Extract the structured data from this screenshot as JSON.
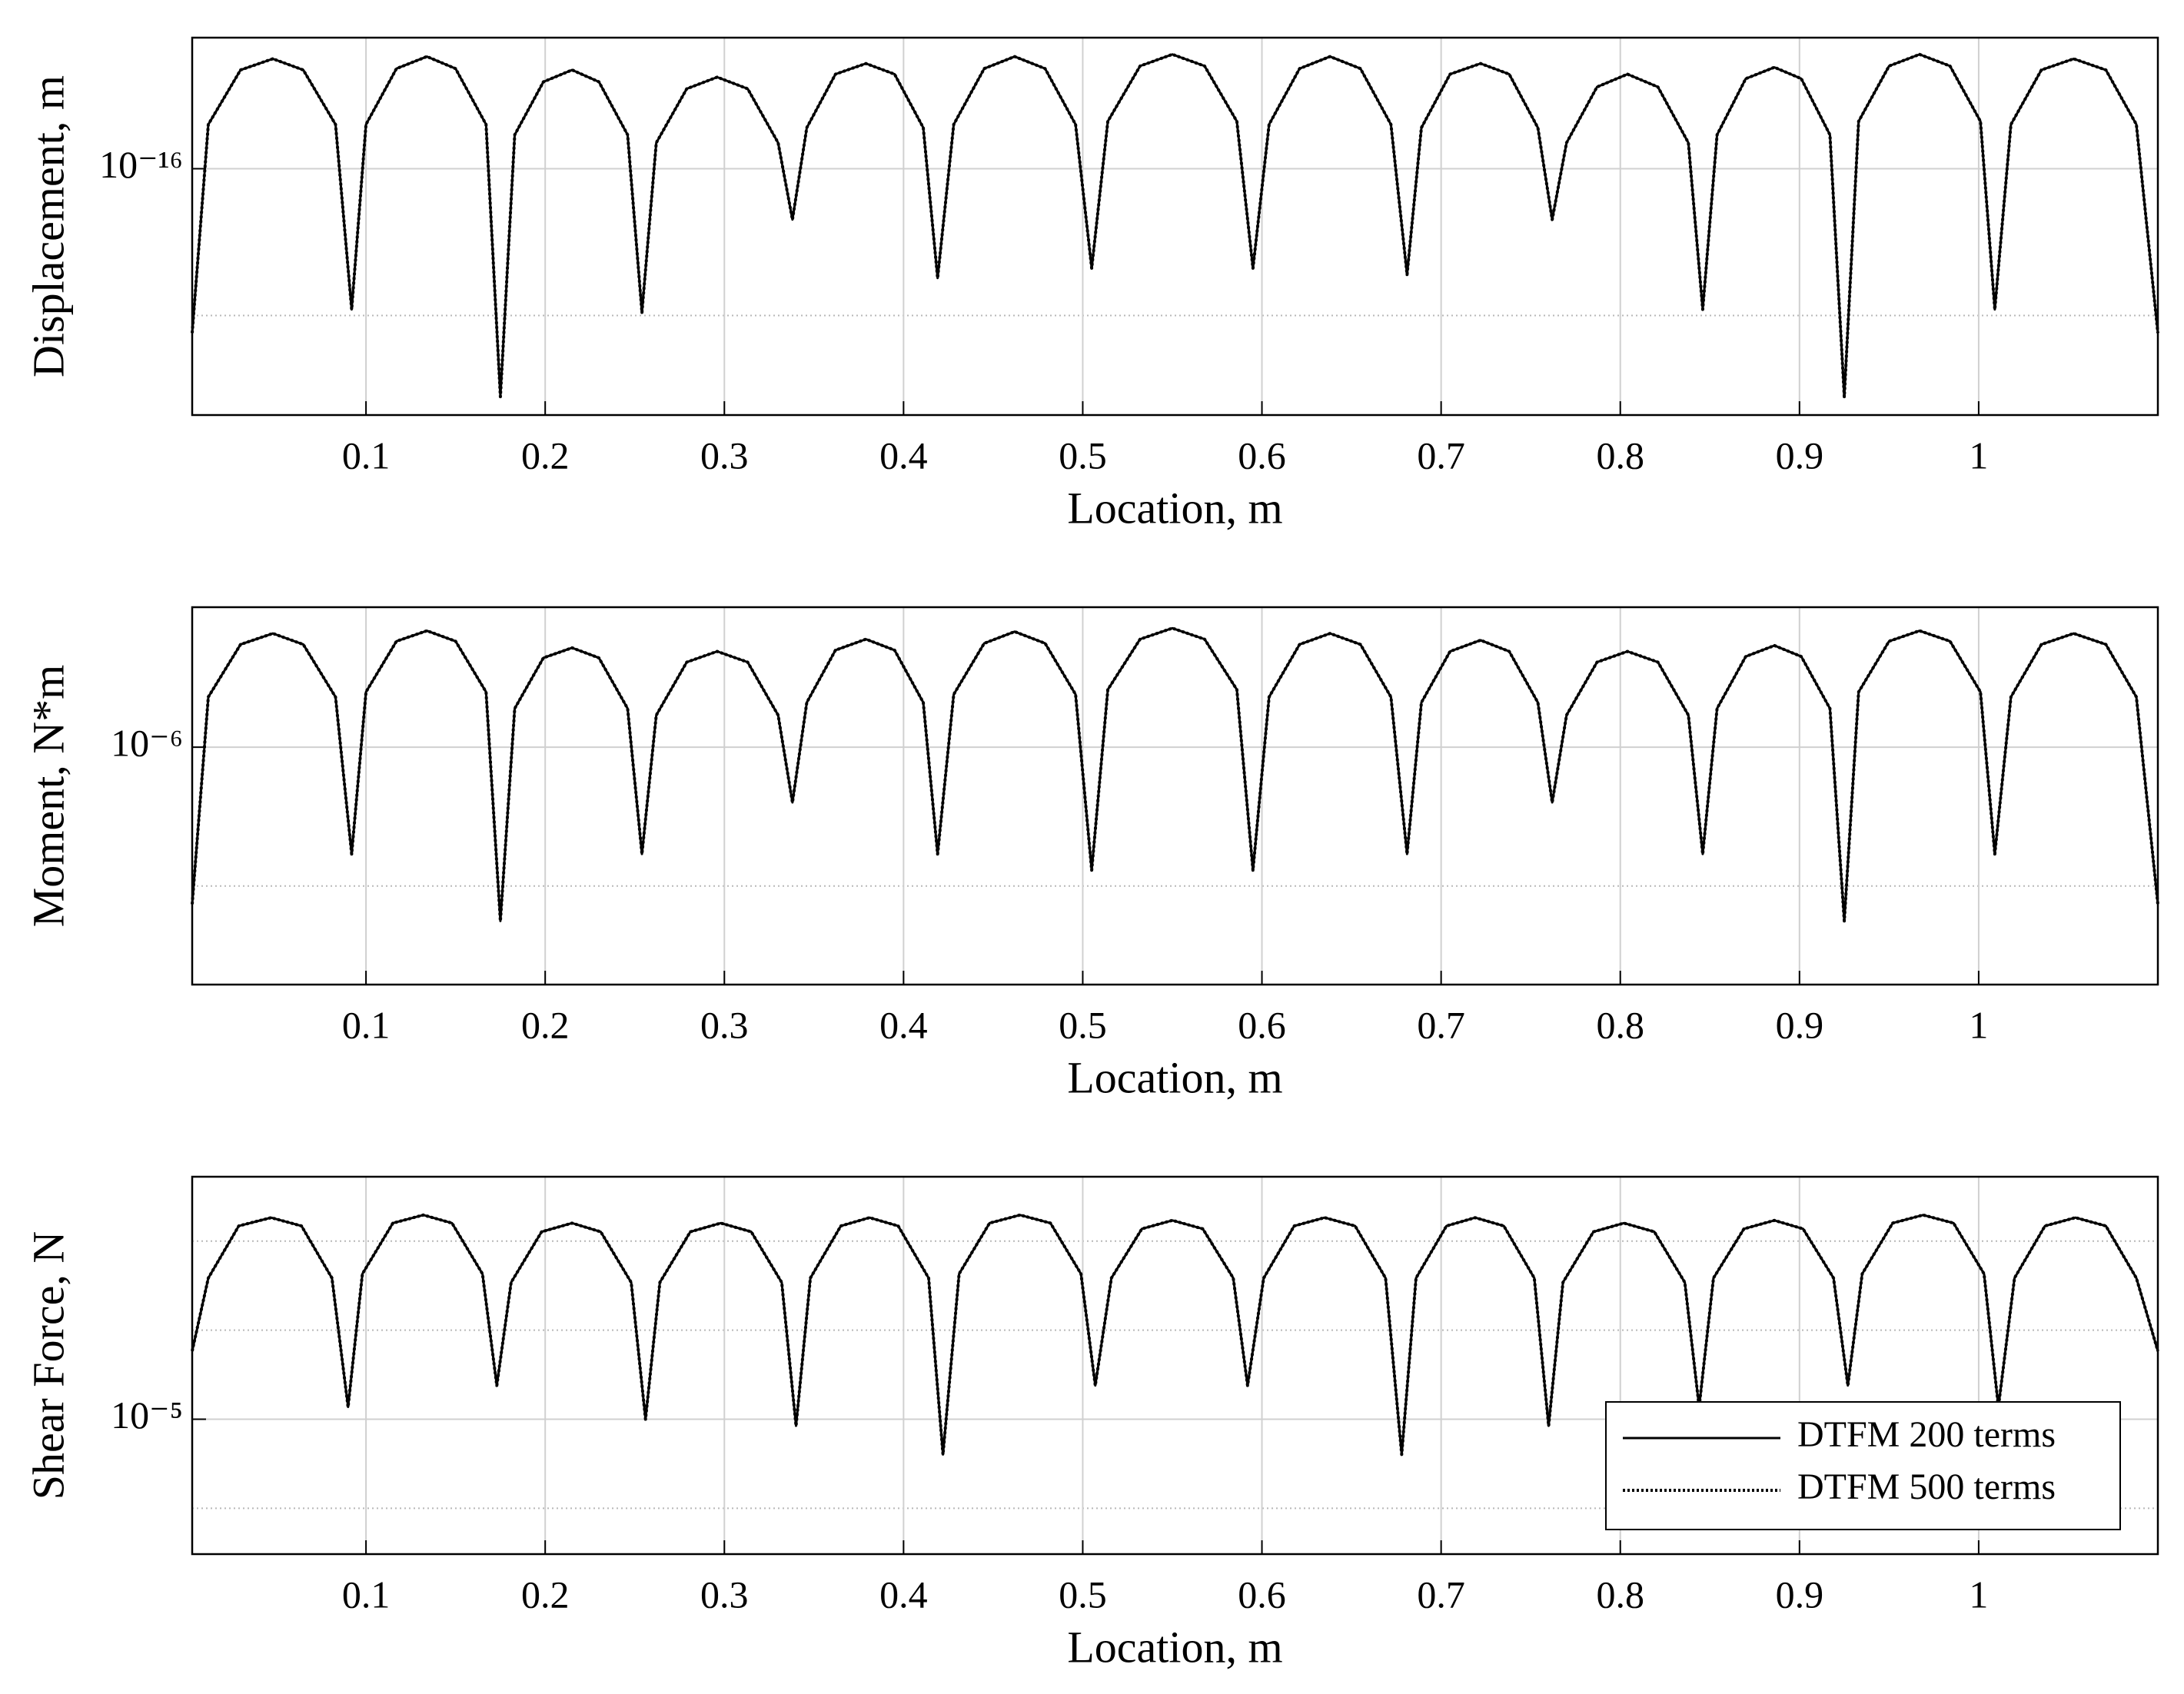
{
  "chart_data": [
    {
      "type": "line",
      "ylabel": "Displacement, m",
      "xlabel": "Location, m",
      "yscale": "log",
      "grid": true,
      "xlim": [
        0.003,
        1.1
      ],
      "xticks": [
        0.1,
        0.2,
        0.3,
        0.4,
        0.5,
        0.6,
        0.7,
        0.8,
        0.9,
        1
      ],
      "ylim": [
        2.1e-18,
        7.8e-16
      ],
      "yticks": [
        {
          "value": 1e-16,
          "label": "10⁻¹⁶"
        }
      ],
      "yminor": [
        1e-17
      ],
      "x": [
        0.003,
        0.012,
        0.03,
        0.048,
        0.065,
        0.083,
        0.092,
        0.1,
        0.117,
        0.134,
        0.15,
        0.167,
        0.175,
        0.183,
        0.199,
        0.215,
        0.23,
        0.246,
        0.254,
        0.262,
        0.279,
        0.296,
        0.313,
        0.33,
        0.338,
        0.346,
        0.362,
        0.379,
        0.395,
        0.411,
        0.419,
        0.428,
        0.445,
        0.462,
        0.479,
        0.496,
        0.505,
        0.514,
        0.532,
        0.55,
        0.568,
        0.586,
        0.595,
        0.604,
        0.621,
        0.638,
        0.655,
        0.672,
        0.681,
        0.689,
        0.705,
        0.722,
        0.738,
        0.754,
        0.762,
        0.77,
        0.787,
        0.804,
        0.821,
        0.838,
        0.846,
        0.854,
        0.87,
        0.886,
        0.901,
        0.917,
        0.925,
        0.933,
        0.95,
        0.967,
        0.984,
        1.001,
        1.009,
        1.018,
        1.035,
        1.053,
        1.071,
        1.088,
        1.1
      ],
      "series": [
        {
          "color": "#000000",
          "linestyle": "solid",
          "values": [
            7.6e-18,
            2e-16,
            4.7e-16,
            5.6e-16,
            4.7e-16,
            2e-16,
            1.1e-17,
            2e-16,
            4.8e-16,
            5.8e-16,
            4.8e-16,
            2e-16,
            2.8e-18,
            1.7e-16,
            3.9e-16,
            4.7e-16,
            3.9e-16,
            1.7e-16,
            1.05e-17,
            1.5e-16,
            3.5e-16,
            4.2e-16,
            3.5e-16,
            1.5e-16,
            4.5e-17,
            1.9e-16,
            4.4e-16,
            5.2e-16,
            4.4e-16,
            1.9e-16,
            1.8e-17,
            2e-16,
            4.8e-16,
            5.8e-16,
            4.8e-16,
            2e-16,
            2.1e-17,
            2.1e-16,
            5e-16,
            6e-16,
            5e-16,
            2.1e-16,
            2.1e-17,
            2e-16,
            4.8e-16,
            5.8e-16,
            4.8e-16,
            2e-16,
            1.9e-17,
            1.9e-16,
            4.4e-16,
            5.2e-16,
            4.4e-16,
            1.9e-16,
            4.5e-17,
            1.5e-16,
            3.6e-16,
            4.4e-16,
            3.6e-16,
            1.5e-16,
            1.1e-17,
            1.7e-16,
            4.1e-16,
            4.9e-16,
            4.1e-16,
            1.7e-16,
            2.8e-18,
            2.1e-16,
            5e-16,
            6e-16,
            5e-16,
            2.1e-16,
            1.1e-17,
            2e-16,
            4.7e-16,
            5.6e-16,
            4.7e-16,
            2e-16,
            7.6e-18
          ]
        },
        {
          "color": "#000000",
          "linestyle": "dotted",
          "values": [
            7.6e-18,
            2e-16,
            4.7e-16,
            5.6e-16,
            4.7e-16,
            2e-16,
            1.1e-17,
            2e-16,
            4.8e-16,
            5.8e-16,
            4.8e-16,
            2e-16,
            2.8e-18,
            1.7e-16,
            3.9e-16,
            4.7e-16,
            3.9e-16,
            1.7e-16,
            1.05e-17,
            1.5e-16,
            3.5e-16,
            4.2e-16,
            3.5e-16,
            1.5e-16,
            4.5e-17,
            1.9e-16,
            4.4e-16,
            5.2e-16,
            4.4e-16,
            1.9e-16,
            1.8e-17,
            2e-16,
            4.8e-16,
            5.8e-16,
            4.8e-16,
            2e-16,
            2.1e-17,
            2.1e-16,
            5e-16,
            6e-16,
            5e-16,
            2.1e-16,
            2.1e-17,
            2e-16,
            4.8e-16,
            5.8e-16,
            4.8e-16,
            2e-16,
            1.9e-17,
            1.9e-16,
            4.4e-16,
            5.2e-16,
            4.4e-16,
            1.9e-16,
            4.5e-17,
            1.5e-16,
            3.6e-16,
            4.4e-16,
            3.6e-16,
            1.5e-16,
            1.1e-17,
            1.7e-16,
            4.1e-16,
            4.9e-16,
            4.1e-16,
            1.7e-16,
            2.8e-18,
            2.1e-16,
            5e-16,
            6e-16,
            5e-16,
            2.1e-16,
            1.1e-17,
            2e-16,
            4.7e-16,
            5.6e-16,
            4.7e-16,
            2e-16,
            7.6e-18
          ]
        }
      ]
    },
    {
      "type": "line",
      "ylabel": "Moment, N*m",
      "xlabel": "Location, m",
      "yscale": "log",
      "grid": true,
      "xlim": [
        0.003,
        1.1
      ],
      "xticks": [
        0.1,
        0.2,
        0.3,
        0.4,
        0.5,
        0.6,
        0.7,
        0.8,
        0.9,
        1
      ],
      "ylim": [
        1.95e-08,
        1.02e-05
      ],
      "yticks": [
        {
          "value": 1e-06,
          "label": "10⁻⁶"
        }
      ],
      "yminor": [
        1e-07
      ],
      "x": [
        0.003,
        0.012,
        0.03,
        0.048,
        0.065,
        0.083,
        0.092,
        0.1,
        0.117,
        0.134,
        0.15,
        0.167,
        0.175,
        0.183,
        0.199,
        0.215,
        0.23,
        0.246,
        0.254,
        0.262,
        0.279,
        0.296,
        0.313,
        0.33,
        0.338,
        0.346,
        0.362,
        0.379,
        0.395,
        0.411,
        0.419,
        0.428,
        0.445,
        0.462,
        0.479,
        0.496,
        0.505,
        0.514,
        0.532,
        0.55,
        0.568,
        0.586,
        0.595,
        0.604,
        0.621,
        0.638,
        0.655,
        0.672,
        0.681,
        0.689,
        0.705,
        0.722,
        0.738,
        0.754,
        0.762,
        0.77,
        0.787,
        0.804,
        0.821,
        0.838,
        0.846,
        0.854,
        0.87,
        0.886,
        0.901,
        0.917,
        0.925,
        0.933,
        0.95,
        0.967,
        0.984,
        1.001,
        1.009,
        1.018,
        1.035,
        1.053,
        1.071,
        1.088,
        1.1
      ],
      "series": [
        {
          "color": "#000000",
          "linestyle": "solid",
          "values": [
            7.4e-08,
            2.3e-06,
            5.5e-06,
            6.6e-06,
            5.5e-06,
            2.3e-06,
            1.7e-07,
            2.5e-06,
            5.8e-06,
            6.9e-06,
            5.8e-06,
            2.5e-06,
            5.6e-08,
            1.9e-06,
            4.4e-06,
            5.2e-06,
            4.4e-06,
            1.9e-06,
            1.7e-07,
            1.7e-06,
            4.1e-06,
            4.9e-06,
            4.1e-06,
            1.7e-06,
            4e-07,
            2.1e-06,
            5e-06,
            6e-06,
            5e-06,
            2.1e-06,
            1.7e-07,
            2.4e-06,
            5.6e-06,
            6.8e-06,
            5.6e-06,
            2.4e-06,
            1.3e-07,
            2.6e-06,
            6e-06,
            7.2e-06,
            6e-06,
            2.6e-06,
            1.3e-07,
            2.3e-06,
            5.5e-06,
            6.6e-06,
            5.5e-06,
            2.3e-06,
            1.7e-07,
            2.1e-06,
            4.9e-06,
            5.9e-06,
            4.9e-06,
            2.1e-06,
            4e-07,
            1.7e-06,
            4.1e-06,
            4.9e-06,
            4.1e-06,
            1.7e-06,
            1.7e-07,
            1.9e-06,
            4.5e-06,
            5.4e-06,
            4.5e-06,
            1.9e-06,
            5.6e-08,
            2.5e-06,
            5.8e-06,
            6.9e-06,
            5.8e-06,
            2.5e-06,
            1.7e-07,
            2.3e-06,
            5.5e-06,
            6.6e-06,
            5.5e-06,
            2.3e-06,
            7.4e-08
          ]
        },
        {
          "color": "#000000",
          "linestyle": "dotted",
          "values": [
            7.4e-08,
            2.3e-06,
            5.5e-06,
            6.6e-06,
            5.5e-06,
            2.3e-06,
            1.7e-07,
            2.5e-06,
            5.8e-06,
            6.9e-06,
            5.8e-06,
            2.5e-06,
            5.6e-08,
            1.9e-06,
            4.4e-06,
            5.2e-06,
            4.4e-06,
            1.9e-06,
            1.7e-07,
            1.7e-06,
            4.1e-06,
            4.9e-06,
            4.1e-06,
            1.7e-06,
            4e-07,
            2.1e-06,
            5e-06,
            6e-06,
            5e-06,
            2.1e-06,
            1.7e-07,
            2.4e-06,
            5.6e-06,
            6.8e-06,
            5.6e-06,
            2.4e-06,
            1.3e-07,
            2.6e-06,
            6e-06,
            7.2e-06,
            6e-06,
            2.6e-06,
            1.3e-07,
            2.3e-06,
            5.5e-06,
            6.6e-06,
            5.5e-06,
            2.3e-06,
            1.7e-07,
            2.1e-06,
            4.9e-06,
            5.9e-06,
            4.9e-06,
            2.1e-06,
            4e-07,
            1.7e-06,
            4.1e-06,
            4.9e-06,
            4.1e-06,
            1.7e-06,
            1.7e-07,
            1.9e-06,
            4.5e-06,
            5.4e-06,
            4.5e-06,
            1.9e-06,
            5.6e-08,
            2.5e-06,
            5.8e-06,
            6.9e-06,
            5.8e-06,
            2.5e-06,
            1.7e-07,
            2.3e-06,
            5.5e-06,
            6.6e-06,
            5.5e-06,
            2.3e-06,
            7.4e-08
          ]
        }
      ]
    },
    {
      "type": "line",
      "ylabel": "Shear Force, N",
      "xlabel": "Location, m",
      "yscale": "log",
      "grid": true,
      "legend": "lower right",
      "xlim": [
        0.003,
        1.1
      ],
      "xticks": [
        0.1,
        0.2,
        0.3,
        0.4,
        0.5,
        0.6,
        0.7,
        0.8,
        0.9,
        1
      ],
      "ylim": [
        3.5e-06,
        6.6e-05
      ],
      "yticks": [
        {
          "value": 1e-05,
          "label": "10⁻⁵"
        }
      ],
      "yminor": [
        5e-06,
        2e-05,
        4e-05
      ],
      "x": [
        0.003,
        0.012,
        0.029,
        0.047,
        0.064,
        0.081,
        0.09,
        0.098,
        0.115,
        0.132,
        0.148,
        0.165,
        0.173,
        0.181,
        0.198,
        0.215,
        0.231,
        0.248,
        0.256,
        0.264,
        0.281,
        0.298,
        0.315,
        0.332,
        0.34,
        0.348,
        0.365,
        0.381,
        0.397,
        0.414,
        0.422,
        0.431,
        0.448,
        0.465,
        0.482,
        0.499,
        0.507,
        0.516,
        0.533,
        0.55,
        0.567,
        0.584,
        0.592,
        0.601,
        0.618,
        0.635,
        0.652,
        0.669,
        0.678,
        0.686,
        0.703,
        0.719,
        0.735,
        0.752,
        0.76,
        0.768,
        0.785,
        0.802,
        0.819,
        0.836,
        0.844,
        0.852,
        0.869,
        0.886,
        0.902,
        0.919,
        0.927,
        0.935,
        0.952,
        0.969,
        0.986,
        1.003,
        1.011,
        1.02,
        1.037,
        1.054,
        1.071,
        1.088,
        1.1
      ],
      "series": [
        {
          "name": "DTFM 200 terms",
          "color": "#000000",
          "linestyle": "solid",
          "values": [
            1.7e-05,
            3e-05,
            4.5e-05,
            4.8e-05,
            4.5e-05,
            3e-05,
            1.1e-05,
            3.1e-05,
            4.6e-05,
            4.9e-05,
            4.6e-05,
            3.1e-05,
            1.3e-05,
            2.9e-05,
            4.3e-05,
            4.6e-05,
            4.3e-05,
            2.9e-05,
            1e-05,
            2.9e-05,
            4.3e-05,
            4.6e-05,
            4.3e-05,
            2.9e-05,
            9.5e-06,
            3e-05,
            4.5e-05,
            4.8e-05,
            4.5e-05,
            3e-05,
            7.6e-06,
            3.1e-05,
            4.6e-05,
            4.9e-05,
            4.6e-05,
            3.1e-05,
            1.3e-05,
            3e-05,
            4.4e-05,
            4.7e-05,
            4.4e-05,
            3e-05,
            1.3e-05,
            3e-05,
            4.5e-05,
            4.8e-05,
            4.5e-05,
            3e-05,
            7.6e-06,
            3e-05,
            4.5e-05,
            4.8e-05,
            4.5e-05,
            3e-05,
            9.5e-06,
            2.9e-05,
            4.3e-05,
            4.6e-05,
            4.3e-05,
            2.9e-05,
            1.1e-05,
            3e-05,
            4.4e-05,
            4.7e-05,
            4.4e-05,
            3e-05,
            1.3e-05,
            3.1e-05,
            4.6e-05,
            4.9e-05,
            4.6e-05,
            3.1e-05,
            1.1e-05,
            3e-05,
            4.5e-05,
            4.8e-05,
            4.5e-05,
            3e-05,
            1.7e-05
          ]
        },
        {
          "name": "DTFM 500 terms",
          "color": "#000000",
          "linestyle": "dotted",
          "values": [
            1.7e-05,
            3e-05,
            4.5e-05,
            4.8e-05,
            4.5e-05,
            3e-05,
            1.1e-05,
            3.1e-05,
            4.6e-05,
            4.9e-05,
            4.6e-05,
            3.1e-05,
            1.3e-05,
            2.9e-05,
            4.3e-05,
            4.6e-05,
            4.3e-05,
            2.9e-05,
            1e-05,
            2.9e-05,
            4.3e-05,
            4.6e-05,
            4.3e-05,
            2.9e-05,
            9.5e-06,
            3e-05,
            4.5e-05,
            4.8e-05,
            4.5e-05,
            3e-05,
            7.6e-06,
            3.1e-05,
            4.6e-05,
            4.9e-05,
            4.6e-05,
            3.1e-05,
            1.3e-05,
            3e-05,
            4.4e-05,
            4.7e-05,
            4.4e-05,
            3e-05,
            1.3e-05,
            3e-05,
            4.5e-05,
            4.8e-05,
            4.5e-05,
            3e-05,
            7.6e-06,
            3e-05,
            4.5e-05,
            4.8e-05,
            4.5e-05,
            3e-05,
            9.5e-06,
            2.9e-05,
            4.3e-05,
            4.6e-05,
            4.3e-05,
            2.9e-05,
            1.1e-05,
            3e-05,
            4.4e-05,
            4.7e-05,
            4.4e-05,
            3e-05,
            1.3e-05,
            3.1e-05,
            4.6e-05,
            4.9e-05,
            4.6e-05,
            3.1e-05,
            1.1e-05,
            3e-05,
            4.5e-05,
            4.8e-05,
            4.5e-05,
            3e-05,
            1.7e-05
          ]
        }
      ]
    }
  ]
}
